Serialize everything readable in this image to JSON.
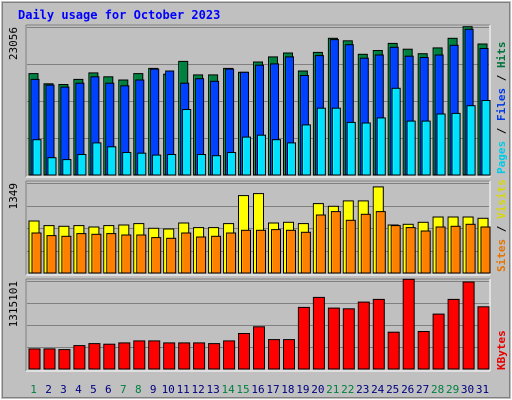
{
  "chart_data": {
    "type": "bar",
    "title": "Daily usage for October 2023",
    "days": [
      "1",
      "2",
      "3",
      "4",
      "5",
      "6",
      "7",
      "8",
      "9",
      "10",
      "11",
      "12",
      "13",
      "14",
      "15",
      "16",
      "17",
      "18",
      "19",
      "20",
      "21",
      "22",
      "23",
      "24",
      "25",
      "26",
      "27",
      "28",
      "29",
      "30",
      "31"
    ],
    "weekend_days": [
      "1",
      "7",
      "8",
      "14",
      "15",
      "21",
      "22",
      "28",
      "29"
    ],
    "panels": [
      {
        "name": "top",
        "max_label": "23056",
        "ymax": 23056,
        "legend": [
          "Pages",
          "Files",
          "Hits"
        ],
        "series": [
          {
            "name": "Hits",
            "color": "#008040",
            "values": [
              15800,
              14200,
              14100,
              14900,
              15900,
              15300,
              14800,
              15800,
              16600,
              15700,
              17700,
              15600,
              15600,
              16600,
              16000,
              17600,
              18400,
              19000,
              16200,
              19100,
              21300,
              20900,
              18800,
              19400,
              20500,
              19600,
              18900,
              19800,
              21300,
              23100,
              20400
            ]
          },
          {
            "name": "Files",
            "color": "#0040ff",
            "values": [
              14900,
              14000,
              13700,
              14300,
              15300,
              14300,
              13900,
              14800,
              16500,
              16200,
              14300,
              15000,
              14600,
              16500,
              16000,
              17100,
              17300,
              18400,
              15500,
              18600,
              21100,
              20300,
              18200,
              18700,
              19900,
              18500,
              18300,
              18700,
              20200,
              22700,
              19700
            ]
          },
          {
            "name": "Pages",
            "color": "#00e0ff",
            "values": [
              5500,
              2700,
              2400,
              3200,
              5000,
              4400,
              3500,
              3400,
              3100,
              3200,
              10200,
              3200,
              3000,
              3500,
              5900,
              6200,
              5500,
              5000,
              7800,
              10400,
              10400,
              8200,
              8100,
              8900,
              13500,
              8400,
              8400,
              9500,
              9600,
              10800,
              11600
            ]
          }
        ]
      },
      {
        "name": "middle",
        "max_label": "1349",
        "ymax": 1349,
        "legend": [
          "Sites",
          "Visits"
        ],
        "series": [
          {
            "name": "Visits",
            "color": "#ffff00",
            "values": [
              780,
              710,
              700,
              710,
              690,
              710,
              720,
              740,
              670,
              660,
              750,
              680,
              680,
              740,
              1160,
              1190,
              750,
              760,
              740,
              1040,
              1000,
              1080,
              1080,
              1290,
              720,
              730,
              760,
              840,
              840,
              840,
              820
            ]
          },
          {
            "name": "Sites",
            "color": "#ff8000",
            "values": [
              600,
              560,
              550,
              590,
              580,
              590,
              570,
              570,
              530,
              520,
              600,
              540,
              550,
              600,
              640,
              640,
              650,
              640,
              610,
              870,
              920,
              790,
              880,
              920,
              710,
              680,
              630,
              690,
              700,
              730,
              690
            ]
          }
        ]
      },
      {
        "name": "bottom",
        "max_label": "1315101",
        "ymax": 1315101,
        "legend": [
          "KBytes"
        ],
        "series": [
          {
            "name": "KBytes",
            "color": "#ff0000",
            "values": [
              300000,
              300000,
              290000,
              350000,
              380000,
              370000,
              390000,
              420000,
              420000,
              390000,
              390000,
              390000,
              380000,
              420000,
              530000,
              630000,
              440000,
              440000,
              920000,
              1070000,
              910000,
              900000,
              1000000,
              1040000,
              550000,
              1340000,
              560000,
              820000,
              1040000,
              1300000,
              930000
            ]
          }
        ]
      }
    ]
  },
  "colors": {
    "background": "#c0c0c0",
    "plot": "#c0c0c0",
    "title": "#0000ff",
    "weekday_label": "#000080",
    "weekend_label": "#008040",
    "pages": "#00e0ff",
    "files": "#0040ff",
    "hits": "#008040",
    "sites": "#ff8000",
    "visits": "#ffff00",
    "kbytes": "#ff0000",
    "axis_label": "#000000"
  }
}
